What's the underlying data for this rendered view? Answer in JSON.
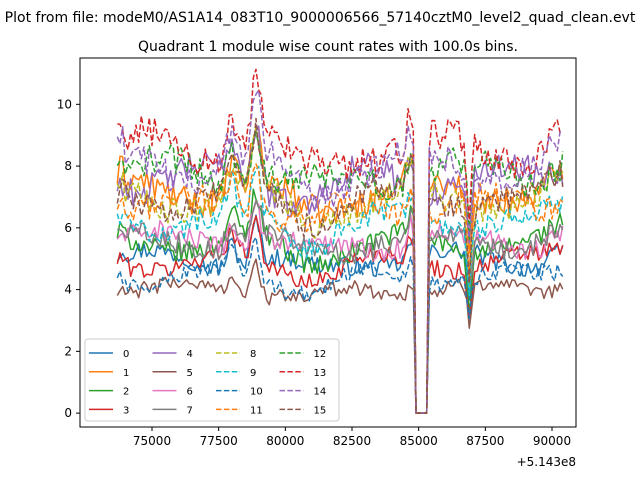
{
  "suptitle": "Plot from file: modeM0/AS1A14_083T10_9000006566_57140cztM0_level2_quad_clean.evt",
  "chart_data": {
    "type": "line",
    "title": "Quadrant 1 module wise count rates with 100.0s bins.",
    "xlabel": "",
    "ylabel": "",
    "x_offset_label": "+5.143e8",
    "xlim": [
      72300,
      90900
    ],
    "ylim": [
      -0.45,
      11.5
    ],
    "xticks": [
      75000,
      77500,
      80000,
      82500,
      85000,
      87500,
      90000
    ],
    "xtick_labels": [
      "75000",
      "77500",
      "80000",
      "82500",
      "85000",
      "87500",
      "90000"
    ],
    "yticks": [
      0,
      2,
      4,
      6,
      8,
      10
    ],
    "ytick_labels": [
      "0",
      "2",
      "4",
      "6",
      "8",
      "10"
    ],
    "legend_position": "lower-left",
    "legend_columns": 4,
    "grid": false,
    "x_start": 73700,
    "x_end": 90400,
    "bin_size": 100,
    "gap_interval": [
      84900,
      85300
    ],
    "series": [
      {
        "name": "0",
        "base": 5.0,
        "style": "solid",
        "color": "#1f77b4"
      },
      {
        "name": "1",
        "base": 7.2,
        "style": "solid",
        "color": "#ff7f0e"
      },
      {
        "name": "2",
        "base": 5.5,
        "style": "solid",
        "color": "#2ca02c"
      },
      {
        "name": "3",
        "base": 4.9,
        "style": "solid",
        "color": "#d62728"
      },
      {
        "name": "4",
        "base": 7.6,
        "style": "solid",
        "color": "#9467bd"
      },
      {
        "name": "5",
        "base": 4.0,
        "style": "solid",
        "color": "#8c564b"
      },
      {
        "name": "6",
        "base": 5.6,
        "style": "solid",
        "color": "#e377c2"
      },
      {
        "name": "7",
        "base": 5.6,
        "style": "solid",
        "color": "#7f7f7f"
      },
      {
        "name": "8",
        "base": 6.9,
        "style": "dashed",
        "color": "#bcbd22"
      },
      {
        "name": "9",
        "base": 6.2,
        "style": "dashed",
        "color": "#17becf"
      },
      {
        "name": "10",
        "base": 4.4,
        "style": "dashed",
        "color": "#1f77b4"
      },
      {
        "name": "11",
        "base": 6.7,
        "style": "dashed",
        "color": "#ff7f0e"
      },
      {
        "name": "12",
        "base": 7.8,
        "style": "dashed",
        "color": "#2ca02c"
      },
      {
        "name": "13",
        "base": 8.6,
        "style": "dashed",
        "color": "#d62728"
      },
      {
        "name": "14",
        "base": 8.0,
        "style": "dashed",
        "color": "#9467bd"
      },
      {
        "name": "15",
        "base": 7.0,
        "style": "dashed",
        "color": "#8c564b"
      }
    ]
  }
}
